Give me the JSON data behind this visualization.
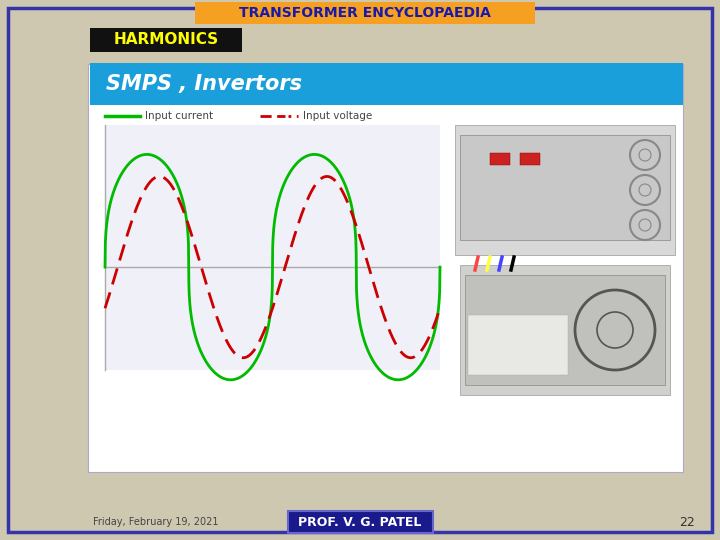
{
  "bg_color": "#cfc8b0",
  "title_text": "TRANSFORMER ENCYCLOPAEDIA",
  "title_bg": "#f5a020",
  "title_text_color": "#1a1aaa",
  "harmonics_text": "HARMONICS",
  "harmonics_bg": "#111111",
  "harmonics_text_color": "#ffff00",
  "slide_bg": "#ffffff",
  "slide_border": "#aaaacc",
  "header_bg": "#1a9fdb",
  "header_text": "SMPS , Invertors",
  "header_text_color": "#ffffff",
  "legend_input_current": "Input current",
  "legend_input_voltage": "Input voltage",
  "footer_date": "Friday, February 19, 2021",
  "footer_author_text": "PROF. V. G. PATEL",
  "footer_author_bg": "#1a1a8c",
  "footer_author_text_color": "#ffffff",
  "page_number": "22",
  "green_color": "#00bb00",
  "red_color": "#cc0000",
  "axis_color": "#aaaaaa",
  "waveform_bg": "#f0f0f8"
}
